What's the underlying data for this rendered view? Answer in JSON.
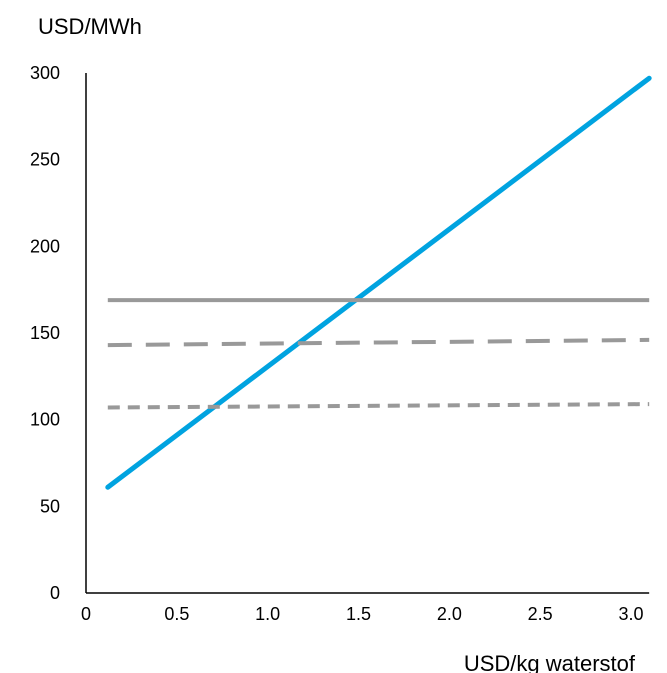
{
  "chart_data": {
    "type": "line",
    "ylabel": "USD/MWh",
    "xlabel": "USD/kg waterstof",
    "xlim": [
      0,
      3.1
    ],
    "ylim": [
      0,
      300
    ],
    "x_ticks": [
      "0",
      "0.5",
      "1.0",
      "1.5",
      "2.0",
      "2.5",
      "3.0"
    ],
    "x_tick_values": [
      0,
      0.5,
      1.0,
      1.5,
      2.0,
      2.5,
      3.0
    ],
    "y_ticks": [
      "0",
      "50",
      "100",
      "150",
      "200",
      "250",
      "300"
    ],
    "y_tick_values": [
      0,
      50,
      100,
      150,
      200,
      250,
      300
    ],
    "grid": false,
    "legend": "none",
    "series": [
      {
        "style": "solid",
        "color": "#00a3e0",
        "x": [
          0.12,
          3.1
        ],
        "y": [
          61,
          297
        ]
      },
      {
        "style": "solid",
        "color": "#999999",
        "x": [
          0.12,
          3.1
        ],
        "y": [
          169,
          169
        ]
      },
      {
        "style": "long-dash",
        "color": "#999999",
        "x": [
          0.12,
          3.1
        ],
        "y": [
          143,
          146
        ]
      },
      {
        "style": "short-dash",
        "color": "#999999",
        "x": [
          0.12,
          3.1
        ],
        "y": [
          107,
          109
        ]
      }
    ]
  }
}
